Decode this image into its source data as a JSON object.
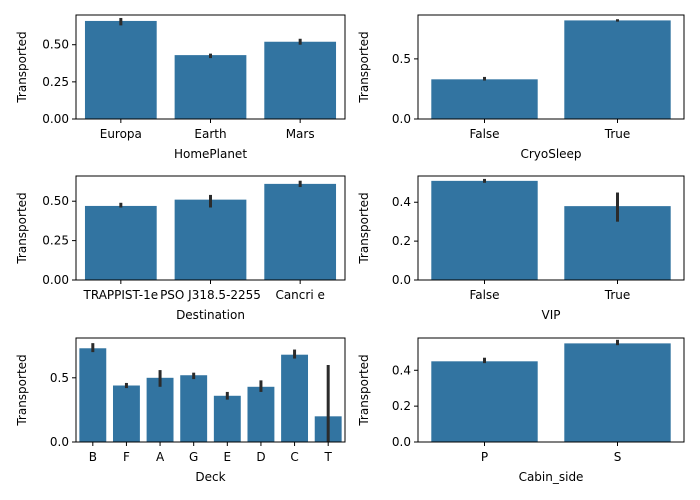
{
  "colors": {
    "bar": "#3274a1",
    "error_bar": "#2b2b2b",
    "axis": "#000000"
  },
  "chart_data": [
    {
      "type": "bar",
      "xlabel": "HomePlanet",
      "ylabel": "Transported",
      "categories": [
        "Europa",
        "Earth",
        "Mars"
      ],
      "values": [
        0.66,
        0.43,
        0.52
      ],
      "error_low": [
        0.63,
        0.41,
        0.5
      ],
      "error_high": [
        0.68,
        0.44,
        0.54
      ],
      "yticks": [
        0.0,
        0.25,
        0.5
      ],
      "ytick_labels": [
        "0.00",
        "0.25",
        "0.50"
      ],
      "ylim": [
        0,
        0.7
      ]
    },
    {
      "type": "bar",
      "xlabel": "CryoSleep",
      "ylabel": "Transported",
      "categories": [
        "False",
        "True"
      ],
      "values": [
        0.33,
        0.82
      ],
      "error_low": [
        0.32,
        0.81
      ],
      "error_high": [
        0.35,
        0.83
      ],
      "yticks": [
        0.0,
        0.5
      ],
      "ytick_labels": [
        "0.0",
        "0.5"
      ],
      "ylim": [
        0,
        0.865
      ]
    },
    {
      "type": "bar",
      "xlabel": "Destination",
      "ylabel": "Transported",
      "categories": [
        "TRAPPIST-1e",
        "PSO J318.5-2255",
        "55 Cancri e"
      ],
      "tick_labels": [
        "TRAPPIST-1e",
        "PSO J318.5-2255",
        "Cancri e"
      ],
      "values": [
        0.47,
        0.51,
        0.61
      ],
      "error_low": [
        0.46,
        0.46,
        0.59
      ],
      "error_high": [
        0.49,
        0.54,
        0.63
      ],
      "yticks": [
        0.0,
        0.25,
        0.5
      ],
      "ytick_labels": [
        "0.00",
        "0.25",
        "0.50"
      ],
      "ylim": [
        0,
        0.66
      ]
    },
    {
      "type": "bar",
      "xlabel": "VIP",
      "ylabel": "Transported",
      "categories": [
        "False",
        "True"
      ],
      "values": [
        0.51,
        0.38
      ],
      "error_low": [
        0.5,
        0.3
      ],
      "error_high": [
        0.52,
        0.45
      ],
      "yticks": [
        0.0,
        0.2,
        0.4
      ],
      "ytick_labels": [
        "0.0",
        "0.2",
        "0.4"
      ],
      "ylim": [
        0,
        0.535
      ]
    },
    {
      "type": "bar",
      "xlabel": "Deck",
      "ylabel": "Transported",
      "categories": [
        "B",
        "F",
        "A",
        "G",
        "E",
        "D",
        "C",
        "T"
      ],
      "values": [
        0.73,
        0.44,
        0.5,
        0.52,
        0.36,
        0.43,
        0.68,
        0.2
      ],
      "error_low": [
        0.7,
        0.42,
        0.43,
        0.49,
        0.33,
        0.39,
        0.65,
        0.0
      ],
      "error_high": [
        0.77,
        0.46,
        0.56,
        0.54,
        0.39,
        0.48,
        0.72,
        0.6
      ],
      "yticks": [
        0.0,
        0.5
      ],
      "ytick_labels": [
        "0.0",
        "0.5"
      ],
      "ylim": [
        0,
        0.81
      ]
    },
    {
      "type": "bar",
      "xlabel": "Cabin_side",
      "ylabel": "Transported",
      "categories": [
        "P",
        "S"
      ],
      "values": [
        0.45,
        0.55
      ],
      "error_low": [
        0.44,
        0.54
      ],
      "error_high": [
        0.47,
        0.57
      ],
      "yticks": [
        0.0,
        0.2,
        0.4
      ],
      "ytick_labels": [
        "0.0",
        "0.2",
        "0.4"
      ],
      "ylim": [
        0,
        0.58
      ]
    }
  ]
}
